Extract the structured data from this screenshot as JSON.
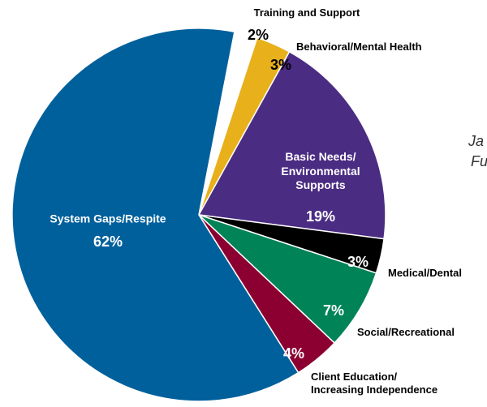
{
  "chart_data": {
    "type": "pie",
    "categories": [
      "Training and Support",
      "Behavioral/Mental Health",
      "Basic Needs/\nEnvironmental\nSupports",
      "Medical/Dental",
      "Social/Recreational",
      "Client Education/\nIncreasing Independence",
      "System Gaps/Respite"
    ],
    "values": [
      2,
      3,
      19,
      3,
      7,
      4,
      62
    ],
    "value_labels": [
      "2%",
      "3%",
      "19%",
      "3%",
      "7%",
      "4%",
      "62%"
    ],
    "colors": [
      "#ffffff",
      "#e8b01a",
      "#4b2c83",
      "#000000",
      "#008357",
      "#8b0030",
      "#00609c"
    ],
    "annotations": [
      "Ja",
      "Fu"
    ]
  }
}
